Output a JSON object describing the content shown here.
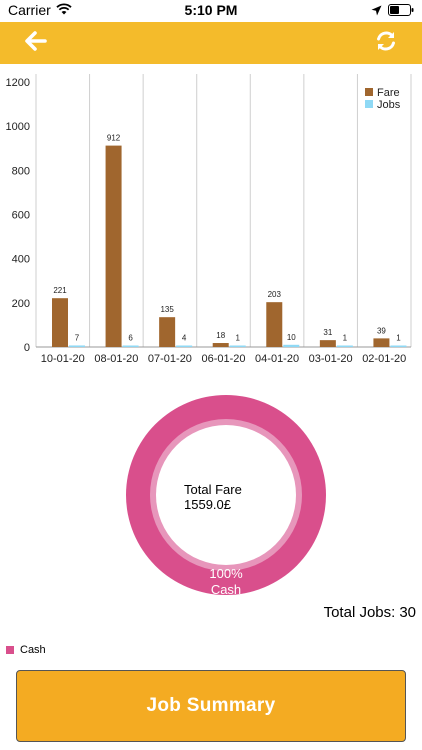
{
  "status_bar": {
    "carrier": "Carrier",
    "time": "5:10 PM"
  },
  "nav": {
    "back_icon": "arrow-left-icon",
    "refresh_icon": "refresh-icon",
    "bar_color": "#f4bb2b"
  },
  "chart_data": {
    "type": "bar",
    "categories": [
      "10-01-20",
      "08-01-20",
      "07-01-20",
      "06-01-20",
      "04-01-20",
      "03-01-20",
      "02-01-20"
    ],
    "series": [
      {
        "name": "Fare",
        "color": "#a0662e",
        "values": [
          221,
          912,
          135,
          18,
          203,
          31,
          39
        ]
      },
      {
        "name": "Jobs",
        "color": "#8fd9f5",
        "values": [
          7,
          6,
          4,
          1,
          10,
          1,
          1
        ]
      }
    ],
    "ylim": [
      0,
      1200
    ],
    "yticks": [
      0,
      200,
      400,
      600,
      800,
      1000,
      1200
    ],
    "grid": "vertical",
    "legend": "top-right"
  },
  "donut": {
    "title": "Total Fare",
    "value": "1559.0£",
    "slice_percent": "100%",
    "slice_label": "Cash",
    "color": "#d94f8c"
  },
  "totals": {
    "label": "Total Jobs:",
    "value": "30"
  },
  "legend": {
    "label": "Cash"
  },
  "button": {
    "label": "Job Summary",
    "color": "#f4ab22"
  }
}
